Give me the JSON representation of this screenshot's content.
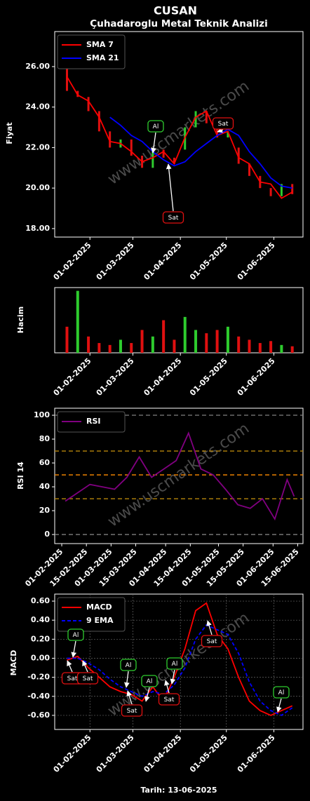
{
  "chart_data": [
    {
      "type": "line",
      "title": "CUSAN",
      "subtitle": "Çuhadaroglu Metal Teknik Analizi",
      "ylabel": "Fiyat",
      "watermark": "www.uscmarkets.com",
      "x": [
        "2025-01-17",
        "2025-01-24",
        "2025-01-31",
        "2025-02-07",
        "2025-02-14",
        "2025-02-21",
        "2025-02-28",
        "2025-03-07",
        "2025-03-14",
        "2025-03-21",
        "2025-03-28",
        "2025-04-04",
        "2025-04-11",
        "2025-04-18",
        "2025-04-25",
        "2025-05-02",
        "2025-05-09",
        "2025-05-16",
        "2025-05-23",
        "2025-05-30",
        "2025-06-06",
        "2025-06-13"
      ],
      "xlim": [
        "2025-01-09",
        "2025-06-20"
      ],
      "xticks": [
        {
          "value": "2025-02-01",
          "label": "01-02-2025"
        },
        {
          "value": "2025-03-01",
          "label": "01-03-2025"
        },
        {
          "value": "2025-04-01",
          "label": "01-04-2025"
        },
        {
          "value": "2025-05-01",
          "label": "01-05-2025"
        },
        {
          "value": "2025-06-01",
          "label": "01-06-2025"
        }
      ],
      "ylim": [
        17.58,
        27.73
      ],
      "yticks": [
        {
          "value": 18,
          "label": "18.00"
        },
        {
          "value": 20,
          "label": "20.00"
        },
        {
          "value": 22,
          "label": "22.00"
        },
        {
          "value": 24,
          "label": "24.00"
        },
        {
          "value": 26,
          "label": "26.00"
        }
      ],
      "candles": {
        "up_color": "#2ecc2e",
        "down_color": "#e01010",
        "open": [
          26.0,
          24.8,
          24.5,
          23.8,
          22.8,
          22.0,
          22.4,
          21.6,
          21.0,
          21.9,
          21.5,
          21.9,
          23.0,
          23.8,
          23.2,
          22.5,
          22.0,
          21.2,
          20.6,
          20.0,
          19.6,
          20.2
        ],
        "close": [
          24.8,
          24.5,
          23.8,
          22.8,
          22.0,
          22.4,
          21.6,
          21.0,
          21.9,
          21.5,
          21.2,
          23.0,
          23.8,
          23.2,
          22.5,
          22.8,
          21.2,
          20.6,
          20.0,
          19.6,
          20.2,
          19.7
        ]
      },
      "series": [
        {
          "name": "SMA 7",
          "color": "#ff0000",
          "values": [
            25.5,
            24.6,
            24.3,
            23.5,
            22.3,
            22.2,
            21.8,
            21.3,
            21.5,
            21.8,
            21.2,
            22.5,
            23.5,
            23.8,
            22.6,
            22.8,
            21.5,
            21.2,
            20.3,
            20.2,
            19.5,
            19.8
          ]
        },
        {
          "name": "SMA 21",
          "color": "#0000ff",
          "values": [
            null,
            null,
            null,
            null,
            23.5,
            23.1,
            22.6,
            22.3,
            21.8,
            21.4,
            21.1,
            21.3,
            21.8,
            22.2,
            22.6,
            22.9,
            22.6,
            21.8,
            21.2,
            20.5,
            20.1,
            20.0
          ]
        }
      ],
      "legend": "upper left",
      "annotations": [
        {
          "text": "Al",
          "color": "#2ecc2e"
        },
        {
          "text": "Sat",
          "color": "#e01010"
        },
        {
          "text": "Sat",
          "color": "#e01010"
        }
      ]
    },
    {
      "type": "bar",
      "ylabel": "Hacim",
      "x": [
        "2025-01-17",
        "2025-01-24",
        "2025-01-31",
        "2025-02-07",
        "2025-02-14",
        "2025-02-21",
        "2025-02-28",
        "2025-03-07",
        "2025-03-14",
        "2025-03-21",
        "2025-03-28",
        "2025-04-04",
        "2025-04-11",
        "2025-04-18",
        "2025-04-25",
        "2025-05-02",
        "2025-05-09",
        "2025-05-16",
        "2025-05-23",
        "2025-05-30",
        "2025-06-06",
        "2025-06-13"
      ],
      "xlim": [
        "2025-01-09",
        "2025-06-20"
      ],
      "xticks": [
        {
          "value": "2025-02-01",
          "label": "01-02-2025"
        },
        {
          "value": "2025-03-01",
          "label": "01-03-2025"
        },
        {
          "value": "2025-04-01",
          "label": "01-04-2025"
        },
        {
          "value": "2025-05-01",
          "label": "01-05-2025"
        },
        {
          "value": "2025-06-01",
          "label": "01-06-2025"
        }
      ],
      "ylim": [
        0,
        100
      ],
      "values": [
        40,
        95,
        25,
        15,
        12,
        20,
        15,
        35,
        25,
        50,
        20,
        55,
        35,
        30,
        35,
        40,
        25,
        20,
        15,
        18,
        12,
        10
      ],
      "colors": [
        "#e01010",
        "#2ecc2e",
        "#e01010",
        "#e01010",
        "#e01010",
        "#2ecc2e",
        "#e01010",
        "#e01010",
        "#2ecc2e",
        "#e01010",
        "#e01010",
        "#2ecc2e",
        "#2ecc2e",
        "#e01010",
        "#e01010",
        "#2ecc2e",
        "#e01010",
        "#e01010",
        "#e01010",
        "#e01010",
        "#2ecc2e",
        "#e01010"
      ]
    },
    {
      "type": "line",
      "ylabel": "RSI 14",
      "watermark": "www.uscmarkets.com",
      "x": [
        "2025-02-03",
        "2025-02-10",
        "2025-02-17",
        "2025-02-24",
        "2025-03-03",
        "2025-03-10",
        "2025-03-17",
        "2025-03-24",
        "2025-03-31",
        "2025-04-07",
        "2025-04-14",
        "2025-04-21",
        "2025-04-28",
        "2025-05-05",
        "2025-05-12",
        "2025-05-19",
        "2025-05-26",
        "2025-06-02",
        "2025-06-09",
        "2025-06-13"
      ],
      "xlim": [
        "2025-01-28",
        "2025-06-18"
      ],
      "xticks": [
        {
          "value": "2025-02-01",
          "label": "01-02-2025"
        },
        {
          "value": "2025-02-15",
          "label": "15-02-2025"
        },
        {
          "value": "2025-03-01",
          "label": "01-03-2025"
        },
        {
          "value": "2025-03-15",
          "label": "15-03-2025"
        },
        {
          "value": "2025-04-01",
          "label": "01-04-2025"
        },
        {
          "value": "2025-04-15",
          "label": "15-04-2025"
        },
        {
          "value": "2025-05-01",
          "label": "01-05-2025"
        },
        {
          "value": "2025-05-15",
          "label": "15-05-2025"
        },
        {
          "value": "2025-06-01",
          "label": "01-06-2025"
        },
        {
          "value": "2025-06-15",
          "label": "15-06-2025"
        }
      ],
      "ylim": [
        -7.6,
        105.9
      ],
      "yticks": [
        0,
        20,
        40,
        60,
        80,
        100
      ],
      "levels": [
        {
          "value": 0,
          "color": "#808080"
        },
        {
          "value": 30,
          "color": "#b8860b"
        },
        {
          "value": 50,
          "color": "#ff8c00"
        },
        {
          "value": 70,
          "color": "#b8860b"
        },
        {
          "value": 100,
          "color": "#808080"
        }
      ],
      "series": [
        {
          "name": "RSI",
          "color": "#800080",
          "values": [
            28,
            35,
            42,
            40,
            38,
            48,
            65,
            48,
            55,
            62,
            85,
            55,
            50,
            38,
            25,
            22,
            30,
            13,
            46,
            32
          ]
        }
      ],
      "legend": "upper left"
    },
    {
      "type": "line",
      "ylabel": "MACD",
      "xlabel": "Tarih: 13-06-2025",
      "watermark": "www.uscmarkets.com",
      "grid": true,
      "x": [
        "2025-01-17",
        "2025-01-24",
        "2025-01-31",
        "2025-02-07",
        "2025-02-14",
        "2025-02-21",
        "2025-02-28",
        "2025-03-07",
        "2025-03-14",
        "2025-03-21",
        "2025-03-28",
        "2025-04-04",
        "2025-04-11",
        "2025-04-18",
        "2025-04-25",
        "2025-05-02",
        "2025-05-09",
        "2025-05-16",
        "2025-05-23",
        "2025-05-30",
        "2025-06-06",
        "2025-06-13"
      ],
      "xlim": [
        "2025-01-09",
        "2025-06-20"
      ],
      "xticks": [
        {
          "value": "2025-02-01",
          "label": "01-02-2025"
        },
        {
          "value": "2025-03-01",
          "label": "01-03-2025"
        },
        {
          "value": "2025-04-01",
          "label": "01-04-2025"
        },
        {
          "value": "2025-05-01",
          "label": "01-05-2025"
        },
        {
          "value": "2025-06-01",
          "label": "01-06-2025"
        }
      ],
      "ylim": [
        -0.748,
        0.674
      ],
      "yticks": [
        {
          "value": -0.6,
          "label": "-0.60"
        },
        {
          "value": -0.4,
          "label": "-0.40"
        },
        {
          "value": -0.2,
          "label": "-0.20"
        },
        {
          "value": 0,
          "label": "0.00"
        },
        {
          "value": 0.2,
          "label": "0.20"
        },
        {
          "value": 0.4,
          "label": "0.40"
        },
        {
          "value": 0.6,
          "label": "0.60"
        }
      ],
      "series": [
        {
          "name": "MACD",
          "color": "#ff0000",
          "values": [
            -0.02,
            0.02,
            -0.1,
            -0.2,
            -0.3,
            -0.35,
            -0.38,
            -0.45,
            -0.3,
            -0.45,
            -0.2,
            0.1,
            0.5,
            0.58,
            0.25,
            0.1,
            -0.2,
            -0.45,
            -0.55,
            -0.6,
            -0.55,
            -0.5
          ]
        },
        {
          "name": "9 EMA",
          "color": "#0000ff",
          "dash": true,
          "values": [
            0.0,
            0.0,
            -0.05,
            -0.12,
            -0.22,
            -0.3,
            -0.35,
            -0.4,
            -0.35,
            -0.38,
            -0.28,
            -0.1,
            0.2,
            0.35,
            0.3,
            0.25,
            0.05,
            -0.25,
            -0.45,
            -0.55,
            -0.6,
            -0.52
          ]
        }
      ],
      "legend": "upper left",
      "annotations": [
        {
          "text": "Al",
          "color": "#2ecc2e"
        },
        {
          "text": "Sat",
          "color": "#e01010"
        },
        {
          "text": "Sat",
          "color": "#e01010"
        },
        {
          "text": "Al",
          "color": "#2ecc2e"
        },
        {
          "text": "Sat",
          "color": "#e01010"
        },
        {
          "text": "Al",
          "color": "#2ecc2e"
        },
        {
          "text": "Al",
          "color": "#2ecc2e"
        },
        {
          "text": "Sat",
          "color": "#e01010"
        },
        {
          "text": "Sat",
          "color": "#e01010"
        },
        {
          "text": "Al",
          "color": "#2ecc2e"
        }
      ]
    }
  ]
}
